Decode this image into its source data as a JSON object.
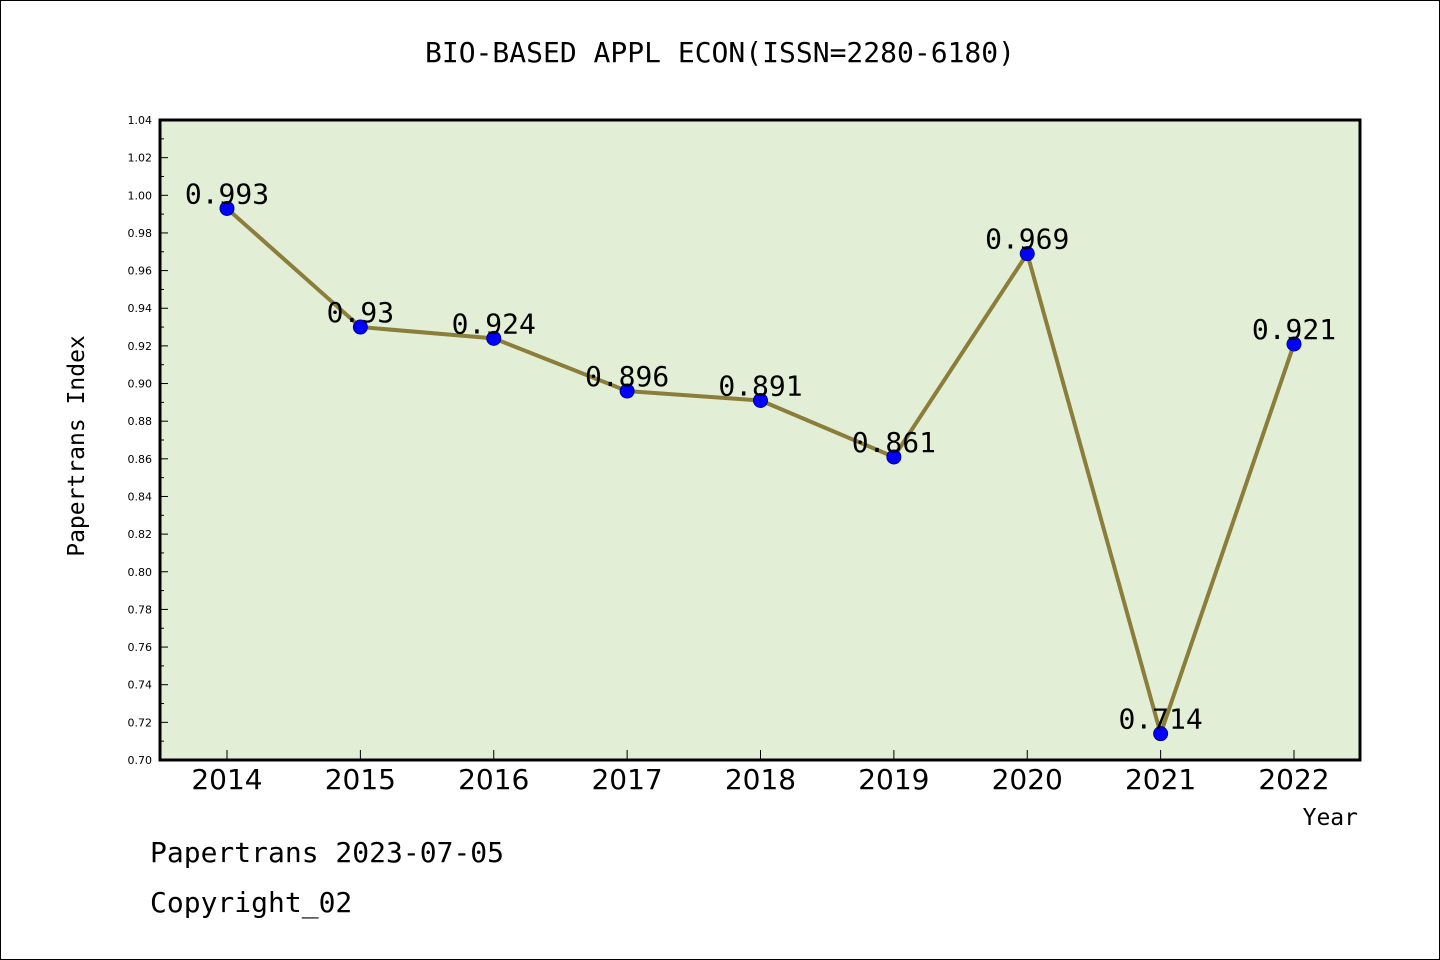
{
  "chart_data": {
    "type": "line",
    "title": "BIO-BASED APPL ECON(ISSN=2280-6180)",
    "xlabel": "Year",
    "ylabel": "Papertrans Index",
    "categories": [
      "2014",
      "2015",
      "2016",
      "2017",
      "2018",
      "2019",
      "2020",
      "2021",
      "2022"
    ],
    "values": [
      0.993,
      0.93,
      0.924,
      0.896,
      0.891,
      0.861,
      0.969,
      0.714,
      0.921
    ],
    "data_labels": [
      "0.993",
      "0.93",
      "0.924",
      "0.896",
      "0.891",
      "0.861",
      "0.969",
      "0.714",
      "0.921"
    ],
    "ylim": [
      0.7,
      1.04
    ],
    "yticks": [
      "0.70",
      "0.72",
      "0.74",
      "0.76",
      "0.78",
      "0.80",
      "0.82",
      "0.84",
      "0.86",
      "0.88",
      "0.90",
      "0.92",
      "0.94",
      "0.96",
      "0.98",
      "1.00",
      "1.02",
      "1.04"
    ],
    "grid": false,
    "colors": {
      "plot_background": "#e2efd6",
      "line": "#8b7d3a",
      "marker": "#0000ff"
    }
  },
  "footer": {
    "line1": "Papertrans 2023-07-05",
    "line2": "Copyright_02"
  }
}
